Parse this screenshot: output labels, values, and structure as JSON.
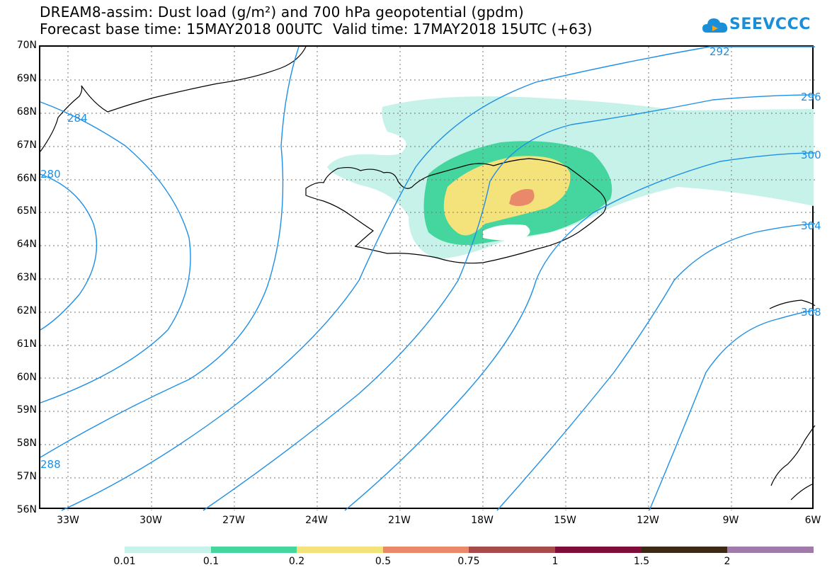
{
  "title_line1": "DREAM8-assim: Dust load (g/m²) and 700 hPa geopotential (gpdm)",
  "title_line2_base": "Forecast base time: 15MAY2018 00UTC",
  "title_line2_valid": "Valid time: 17MAY2018 15UTC (+63)",
  "logo_text": "SEEVCCC",
  "map": {
    "lat_labels": [
      "70N",
      "69N",
      "68N",
      "67N",
      "66N",
      "65N",
      "64N",
      "63N",
      "62N",
      "61N",
      "60N",
      "59N",
      "58N",
      "57N",
      "56N"
    ],
    "lon_labels": [
      "33W",
      "30W",
      "27W",
      "24W",
      "21W",
      "18W",
      "15W",
      "12W",
      "9W",
      "6W"
    ],
    "contour_labels": [
      "284",
      "280",
      "288",
      "292",
      "296",
      "300",
      "304",
      "308"
    ],
    "contour_color": "#1e8fe6"
  },
  "colorbar": {
    "labels": [
      "0.01",
      "0.1",
      "0.2",
      "0.5",
      "0.75",
      "1",
      "1.5",
      "2"
    ],
    "colors": [
      "#c6f2ea",
      "#44d69e",
      "#f4e27a",
      "#e9896a",
      "#a64a4a",
      "#7e0e38",
      "#3c2a16",
      "#a07aa8"
    ]
  }
}
